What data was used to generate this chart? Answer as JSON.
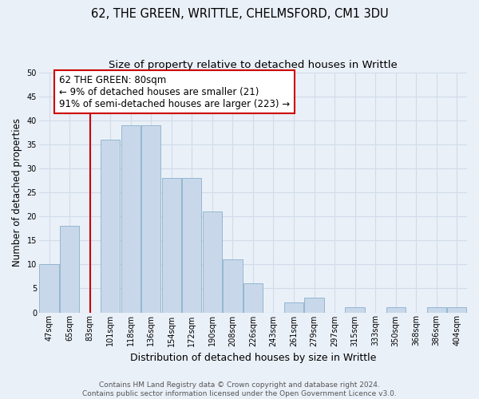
{
  "title": "62, THE GREEN, WRITTLE, CHELMSFORD, CM1 3DU",
  "subtitle": "Size of property relative to detached houses in Writtle",
  "xlabel": "Distribution of detached houses by size in Writtle",
  "ylabel": "Number of detached properties",
  "bar_labels": [
    "47sqm",
    "65sqm",
    "83sqm",
    "101sqm",
    "118sqm",
    "136sqm",
    "154sqm",
    "172sqm",
    "190sqm",
    "208sqm",
    "226sqm",
    "243sqm",
    "261sqm",
    "279sqm",
    "297sqm",
    "315sqm",
    "333sqm",
    "350sqm",
    "368sqm",
    "386sqm",
    "404sqm"
  ],
  "bar_values": [
    10,
    18,
    0,
    36,
    39,
    39,
    28,
    28,
    21,
    11,
    6,
    0,
    2,
    3,
    0,
    1,
    0,
    1,
    0,
    1,
    1
  ],
  "bar_color": "#c8d8ea",
  "bar_edge_color": "#8ab0cc",
  "vline_x": 2.0,
  "vline_color": "#cc0000",
  "ylim": [
    0,
    50
  ],
  "yticks": [
    0,
    5,
    10,
    15,
    20,
    25,
    30,
    35,
    40,
    45,
    50
  ],
  "annotation_line1": "62 THE GREEN: 80sqm",
  "annotation_line2": "← 9% of detached houses are smaller (21)",
  "annotation_line3": "91% of semi-detached houses are larger (223) →",
  "annotation_box_color": "#ffffff",
  "annotation_box_edge": "#cc0000",
  "footer_line1": "Contains HM Land Registry data © Crown copyright and database right 2024.",
  "footer_line2": "Contains public sector information licensed under the Open Government Licence v3.0.",
  "background_color": "#eaf0f8",
  "grid_color": "#d0dce8",
  "title_fontsize": 10.5,
  "subtitle_fontsize": 9.5,
  "ylabel_fontsize": 8.5,
  "xlabel_fontsize": 9,
  "tick_fontsize": 7,
  "annotation_fontsize": 8.5,
  "footer_fontsize": 6.5
}
